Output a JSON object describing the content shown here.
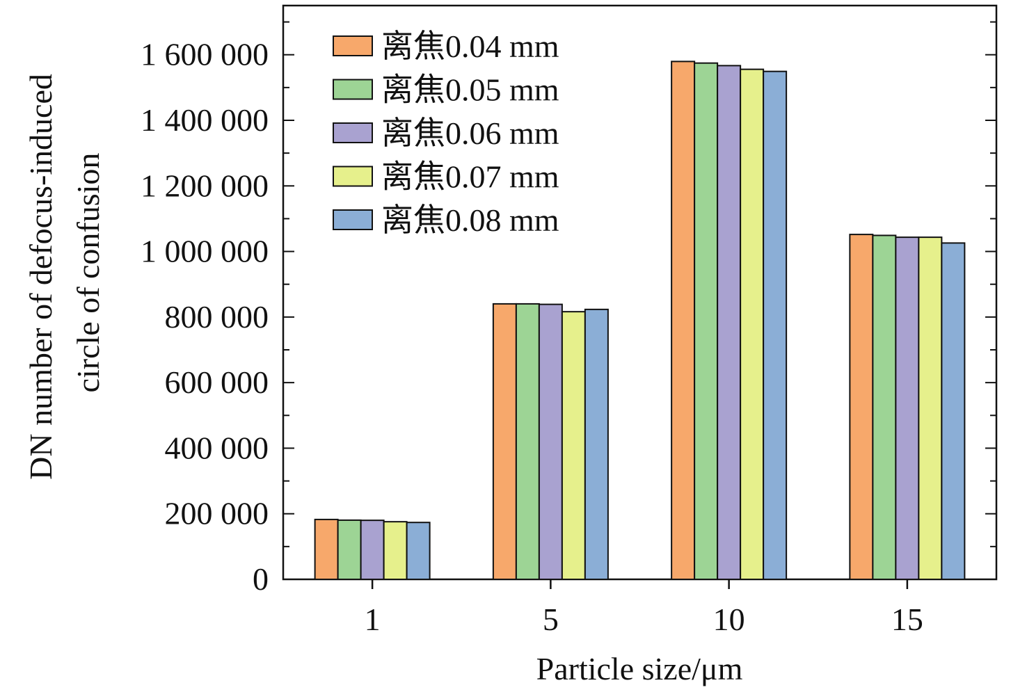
{
  "chart_data": {
    "type": "bar",
    "title": "",
    "xlabel": "Particle size/μm",
    "ylabel_lines": [
      "DN number of defocus-induced",
      "circle of confusion"
    ],
    "categories": [
      "1",
      "5",
      "10",
      "15"
    ],
    "ylim": [
      0,
      1750000
    ],
    "yticks": [
      0,
      200000,
      400000,
      600000,
      800000,
      1000000,
      1200000,
      1400000,
      1600000
    ],
    "ytick_labels": [
      "0",
      "200 000",
      "400 000",
      "600 000",
      "800 000",
      "1 000 000",
      "1 200 000",
      "1 400 000",
      "1 600 000"
    ],
    "grid": false,
    "legend_position": "top-left",
    "series": [
      {
        "name": "离焦0.04 mm",
        "color": "#F7A86B",
        "values": [
          182600,
          840200,
          1579500,
          1051900
        ]
      },
      {
        "name": "离焦0.05 mm",
        "color": "#9DD495",
        "values": [
          180500,
          840200,
          1574600,
          1049000
        ]
      },
      {
        "name": "离焦0.06 mm",
        "color": "#A9A2D0",
        "values": [
          180000,
          838700,
          1566800,
          1043400
        ]
      },
      {
        "name": "离焦0.07 mm",
        "color": "#E6F08C",
        "values": [
          175700,
          816300,
          1555600,
          1043400
        ]
      },
      {
        "name": "离焦0.08 mm",
        "color": "#8BAED6",
        "values": [
          173500,
          823300,
          1549200,
          1025800
        ]
      }
    ]
  }
}
